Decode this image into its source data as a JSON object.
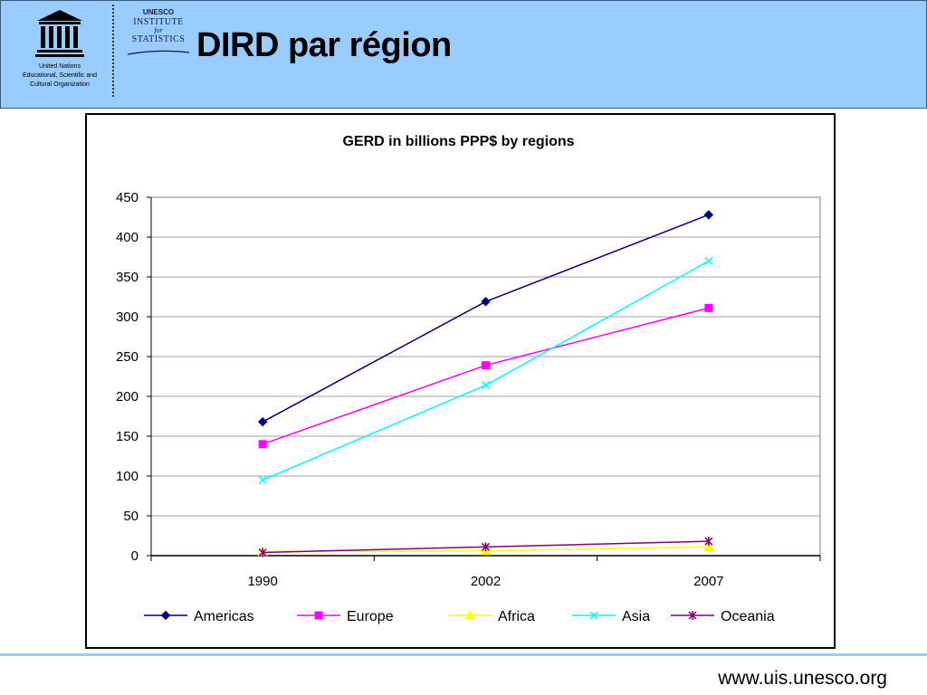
{
  "header": {
    "title": "DIRD par région",
    "unesco_caption": [
      "United Nations",
      "Educational, Scientific and",
      "Cultural Organization"
    ],
    "uis_lines": [
      "UNESCO",
      "INSTITUTE",
      "for",
      "STATISTICS"
    ],
    "background_color": "#99ccff"
  },
  "footer": {
    "url": "www.uis.unesco.org"
  },
  "chart_data": {
    "type": "line",
    "title": "GERD in billions PPP$ by regions",
    "categories": [
      "1990",
      "2002",
      "2007"
    ],
    "ylim": [
      0,
      450
    ],
    "yticks": [
      0,
      50,
      100,
      150,
      200,
      250,
      300,
      350,
      400,
      450
    ],
    "grid": true,
    "legend_position": "bottom",
    "series": [
      {
        "name": "Americas",
        "values": [
          168,
          319,
          428
        ],
        "color": "#000080",
        "marker": "diamond"
      },
      {
        "name": "Europe",
        "values": [
          140,
          239,
          311
        ],
        "color": "#ff00ff",
        "marker": "square"
      },
      {
        "name": "Africa",
        "values": [
          5,
          6,
          11
        ],
        "color": "#ffff00",
        "marker": "triangle"
      },
      {
        "name": "Asia",
        "values": [
          95,
          214,
          370
        ],
        "color": "#00ffff",
        "marker": "x"
      },
      {
        "name": "Oceania",
        "values": [
          4,
          11,
          18
        ],
        "color": "#800080",
        "marker": "star"
      }
    ]
  }
}
